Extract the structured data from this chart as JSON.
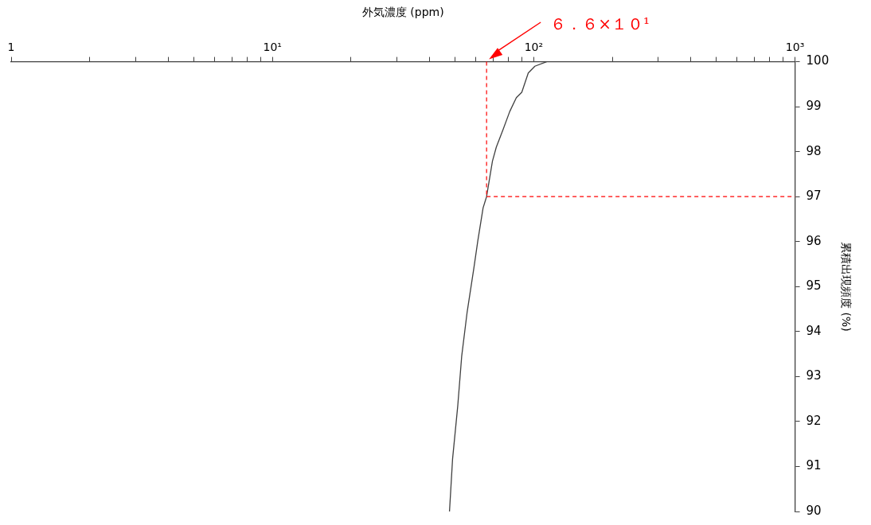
{
  "chart_data": {
    "type": "line",
    "xlabel": "外気濃度 (ppm)",
    "ylabel": "累積出現頻度 (%)",
    "log": "x",
    "grid": false,
    "legend": false,
    "marker": "none",
    "line_style": "solid",
    "xlim": [
      1,
      1000
    ],
    "ylim": [
      90,
      100
    ],
    "xticks": [
      {
        "value": 1,
        "label": "1"
      },
      {
        "value": 2,
        "label": null
      },
      {
        "value": 3,
        "label": null
      },
      {
        "value": 4,
        "label": null
      },
      {
        "value": 5,
        "label": null
      },
      {
        "value": 6,
        "label": null
      },
      {
        "value": 7,
        "label": null
      },
      {
        "value": 8,
        "label": null
      },
      {
        "value": 9,
        "label": null
      },
      {
        "value": 10,
        "label": "10¹"
      },
      {
        "value": 20,
        "label": null
      },
      {
        "value": 30,
        "label": null
      },
      {
        "value": 40,
        "label": null
      },
      {
        "value": 50,
        "label": null
      },
      {
        "value": 60,
        "label": null
      },
      {
        "value": 70,
        "label": null
      },
      {
        "value": 80,
        "label": null
      },
      {
        "value": 90,
        "label": null
      },
      {
        "value": 100,
        "label": "10²"
      },
      {
        "value": 200,
        "label": null
      },
      {
        "value": 300,
        "label": null
      },
      {
        "value": 400,
        "label": null
      },
      {
        "value": 500,
        "label": null
      },
      {
        "value": 600,
        "label": null
      },
      {
        "value": 700,
        "label": null
      },
      {
        "value": 800,
        "label": null
      },
      {
        "value": 900,
        "label": null
      },
      {
        "value": 1000,
        "label": "10³"
      }
    ],
    "yticks": [
      90,
      91,
      92,
      93,
      94,
      95,
      96,
      97,
      98,
      99,
      100
    ],
    "series": [
      {
        "color": "#404040",
        "x": [
          47.6,
          48.9,
          51.2,
          53.0,
          55.6,
          59.0,
          61.1,
          64.0,
          66,
          69.5,
          71.9,
          76.4,
          80.9,
          85.8,
          90.0,
          95.3,
          101,
          112
        ],
        "values": [
          90,
          91.16,
          92.35,
          93.45,
          94.43,
          95.41,
          96.02,
          96.75,
          97,
          97.79,
          98.1,
          98.5,
          98.89,
          99.2,
          99.32,
          99.75,
          99.9,
          100
        ]
      }
    ],
    "ref_lines": [
      {
        "axis": "x",
        "value": 66,
        "color": "#ff0000",
        "line_style": "dashed"
      },
      {
        "axis": "y",
        "value": 97,
        "color": "#ff0000",
        "line_style": "dashed"
      }
    ],
    "annotations": [
      "６．６×１０¹"
    ]
  }
}
